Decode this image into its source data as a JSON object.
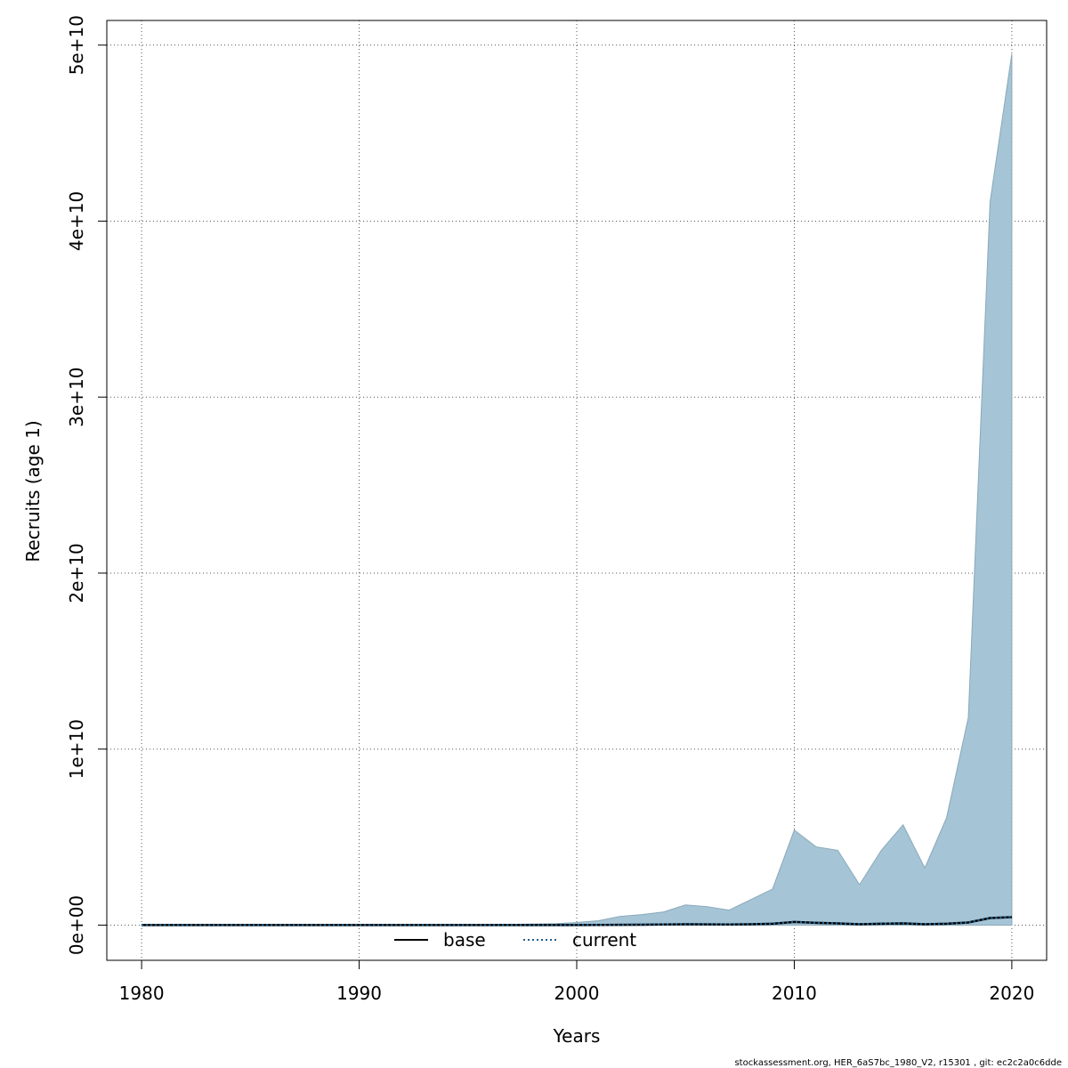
{
  "chart_data": {
    "type": "area",
    "xlabel": "Years",
    "ylabel": "Recruits (age 1)",
    "xlim": [
      1978.4,
      2021.6
    ],
    "ylim": [
      -2000000000,
      51400000000
    ],
    "x_ticks": [
      1980,
      1990,
      2000,
      2010,
      2020
    ],
    "x_tick_labels": [
      "1980",
      "1990",
      "2000",
      "2010",
      "2020"
    ],
    "y_ticks": [
      0,
      10000000000,
      20000000000,
      30000000000,
      40000000000,
      50000000000
    ],
    "y_tick_labels": [
      "0e+00",
      "1e+10",
      "2e+10",
      "3e+10",
      "4e+10",
      "5e+10"
    ],
    "grid": true,
    "legend": {
      "placement": "bottom-center",
      "entries": [
        {
          "label": "base",
          "style": "solid",
          "color": "#000000"
        },
        {
          "label": "current",
          "style": "dotted",
          "color": "#1f5f8b"
        }
      ]
    },
    "band_color": "#a5c4d5",
    "band": {
      "name": "",
      "x": [
        1980,
        1981,
        1982,
        1983,
        1984,
        1985,
        1986,
        1987,
        1988,
        1989,
        1990,
        1991,
        1992,
        1993,
        1994,
        1995,
        1996,
        1997,
        1998,
        1999,
        2000,
        2001,
        2002,
        2003,
        2004,
        2005,
        2006,
        2007,
        2008,
        2009,
        2010,
        2011,
        2012,
        2013,
        2014,
        2015,
        2016,
        2017,
        2018,
        2019,
        2020
      ],
      "upper": [
        5000000,
        5000000,
        5000000,
        5000000,
        5000000,
        5000000,
        5000000,
        5000000,
        5000000,
        5000000,
        10000000,
        10000000,
        10000000,
        10000000,
        15000000,
        20000000,
        30000000,
        40000000,
        60000000,
        80000000,
        150000000,
        250000000,
        500000000,
        600000000,
        750000000,
        1150000000,
        1050000000,
        850000000,
        1450000000,
        2050000000,
        5400000000,
        4450000000,
        4250000000,
        2300000000,
        4250000000,
        5700000000,
        3250000000,
        6100000000,
        11800000000,
        41100000000,
        49500000000
      ],
      "lower": [
        0,
        0,
        0,
        0,
        0,
        0,
        0,
        0,
        0,
        0,
        0,
        0,
        0,
        0,
        0,
        0,
        0,
        0,
        0,
        0,
        0,
        0,
        0,
        0,
        0,
        0,
        0,
        0,
        0,
        0,
        0,
        0,
        0,
        0,
        0,
        0,
        0,
        0,
        0,
        0,
        0
      ]
    },
    "series": [
      {
        "name": "current",
        "x": [
          1980,
          1981,
          1982,
          1983,
          1984,
          1985,
          1986,
          1987,
          1988,
          1989,
          1990,
          1991,
          1992,
          1993,
          1994,
          1995,
          1996,
          1997,
          1998,
          1999,
          2000,
          2001,
          2002,
          2003,
          2004,
          2005,
          2006,
          2007,
          2008,
          2009,
          2010,
          2011,
          2012,
          2013,
          2014,
          2015,
          2016,
          2017,
          2018,
          2019,
          2020
        ],
        "values": [
          1000000,
          1000000,
          1000000,
          1000000,
          1000000,
          1000000,
          1000000,
          1000000,
          1000000,
          1000000,
          1000000,
          1000000,
          1000000,
          1000000,
          1000000,
          1000000,
          1000000,
          2000000,
          2000000,
          3000000,
          5000000,
          8000000,
          15000000,
          25000000,
          35000000,
          45000000,
          40000000,
          35000000,
          50000000,
          80000000,
          180000000,
          130000000,
          100000000,
          50000000,
          80000000,
          100000000,
          50000000,
          80000000,
          150000000,
          400000000,
          450000000
        ]
      }
    ],
    "footer": "stockassessment.org, HER_6aS7bc_1980_V2, r15301 , git: ec2c2a0c6dde"
  }
}
